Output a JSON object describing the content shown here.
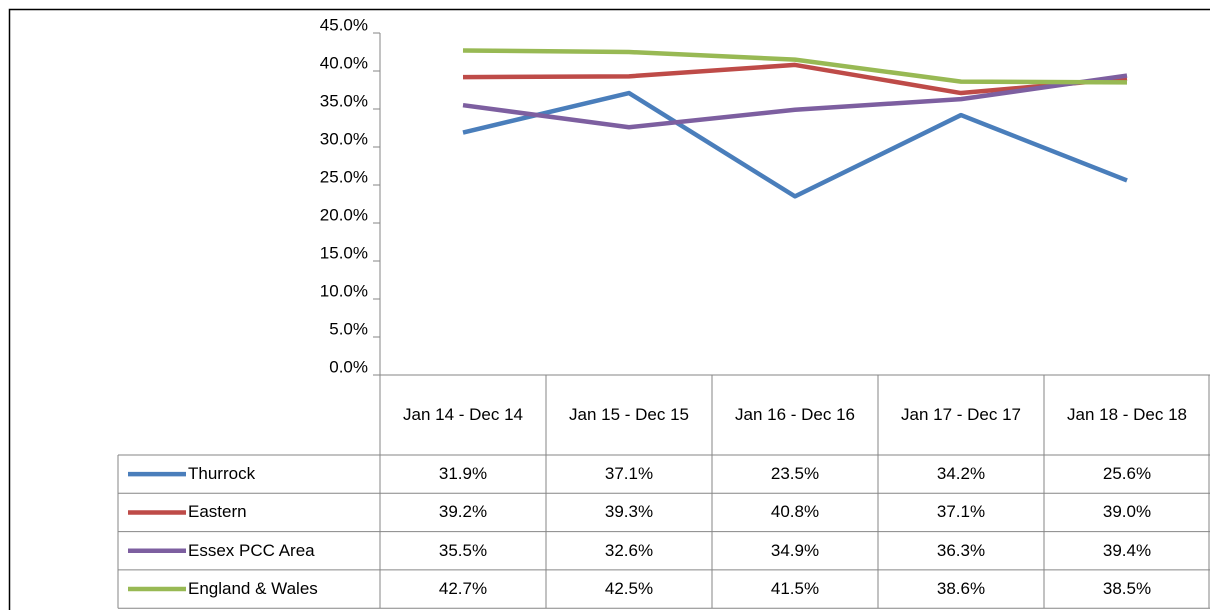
{
  "chart_data": {
    "type": "line",
    "categories": [
      "Jan 14 - Dec 14",
      "Jan 15 - Dec 15",
      "Jan 16 - Dec 16",
      "Jan 17 - Dec 17",
      "Jan 18 - Dec 18"
    ],
    "series": [
      {
        "name": "Thurrock",
        "color": "#4a7ebb",
        "values": [
          31.9,
          37.1,
          23.5,
          34.2,
          25.6
        ],
        "value_labels": [
          "31.9%",
          "37.1%",
          "23.5%",
          "34.2%",
          "25.6%"
        ]
      },
      {
        "name": "Eastern",
        "color": "#be4b48",
        "values": [
          39.2,
          39.3,
          40.8,
          37.1,
          39.0
        ],
        "value_labels": [
          "39.2%",
          "39.3%",
          "40.8%",
          "37.1%",
          "39.0%"
        ]
      },
      {
        "name": "Essex PCC Area",
        "color": "#7d5fa0",
        "values": [
          35.5,
          32.6,
          34.9,
          36.3,
          39.4
        ],
        "value_labels": [
          "35.5%",
          "32.6%",
          "34.9%",
          "36.3%",
          "39.4%"
        ]
      },
      {
        "name": "England & Wales",
        "color": "#98b954",
        "values": [
          42.7,
          42.5,
          41.5,
          38.6,
          38.5
        ],
        "value_labels": [
          "42.7%",
          "42.5%",
          "41.5%",
          "38.6%",
          "38.5%"
        ]
      }
    ],
    "ylim": [
      0,
      45
    ],
    "yticks": [
      {
        "value": 0,
        "label": "0.0%"
      },
      {
        "value": 5,
        "label": "5.0%"
      },
      {
        "value": 10,
        "label": "10.0%"
      },
      {
        "value": 15,
        "label": "15.0%"
      },
      {
        "value": 20,
        "label": "20.0%"
      },
      {
        "value": 25,
        "label": "25.0%"
      },
      {
        "value": 30,
        "label": "30.0%"
      },
      {
        "value": 35,
        "label": "35.0%"
      },
      {
        "value": 40,
        "label": "40.0%"
      },
      {
        "value": 45,
        "label": "45.0%"
      }
    ],
    "grid": false
  }
}
